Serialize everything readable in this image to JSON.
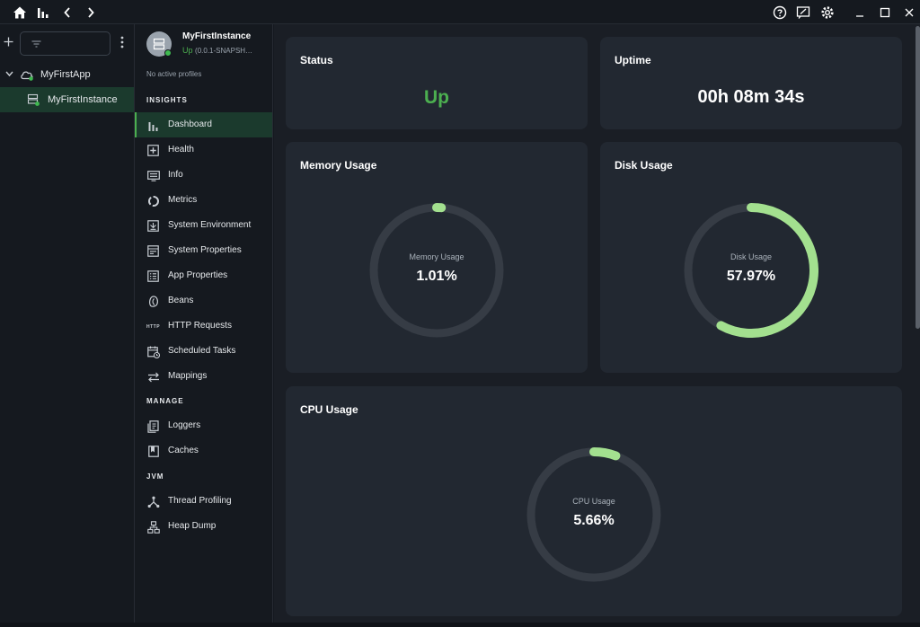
{
  "sidebar": {
    "tree": [
      {
        "label": "MyFirstApp"
      },
      {
        "label": "MyFirstInstance"
      }
    ]
  },
  "instance": {
    "name": "MyFirstInstance",
    "status": "Up",
    "version": "(0.0.1-SNAPSH…",
    "profiles": "No active profiles"
  },
  "nav": {
    "sections": {
      "insights": "INSIGHTS",
      "manage": "MANAGE",
      "jvm": "JVM"
    },
    "items": [
      {
        "label": "Dashboard",
        "icon": "bar-chart-icon"
      },
      {
        "label": "Health",
        "icon": "health-plus-icon"
      },
      {
        "label": "Info",
        "icon": "info-card-icon"
      },
      {
        "label": "Metrics",
        "icon": "donut-chart-icon"
      },
      {
        "label": "System Environment",
        "icon": "system-environment-icon"
      },
      {
        "label": "System Properties",
        "icon": "system-properties-icon"
      },
      {
        "label": "App Properties",
        "icon": "app-properties-icon"
      },
      {
        "label": "Beans",
        "icon": "bean-icon"
      },
      {
        "label": "HTTP Requests",
        "icon": "http-icon"
      },
      {
        "label": "Scheduled Tasks",
        "icon": "calendar-clock-icon"
      },
      {
        "label": "Mappings",
        "icon": "swap-arrows-icon"
      },
      {
        "label": "Loggers",
        "icon": "loggers-icon"
      },
      {
        "label": "Caches",
        "icon": "cache-icon"
      },
      {
        "label": "Thread Profiling",
        "icon": "thread-tree-icon"
      },
      {
        "label": "Heap Dump",
        "icon": "heap-dump-icon"
      }
    ],
    "http_icon_text": "HTTP"
  },
  "dashboard": {
    "status": {
      "title": "Status",
      "value": "Up"
    },
    "uptime": {
      "title": "Uptime",
      "value": "00h 08m 34s"
    },
    "memory": {
      "title": "Memory Usage",
      "label": "Memory Usage",
      "value": "1.01%",
      "fraction": 0.0101
    },
    "disk": {
      "title": "Disk Usage",
      "label": "Disk Usage",
      "value": "57.97%",
      "fraction": 0.5797
    },
    "cpu": {
      "title": "CPU Usage",
      "label": "CPU Usage",
      "value": "5.66%",
      "fraction": 0.0566
    }
  },
  "colors": {
    "accent_green": "#4caf50",
    "gauge_fill": "#a3e08f",
    "gauge_track": "#363c45"
  }
}
